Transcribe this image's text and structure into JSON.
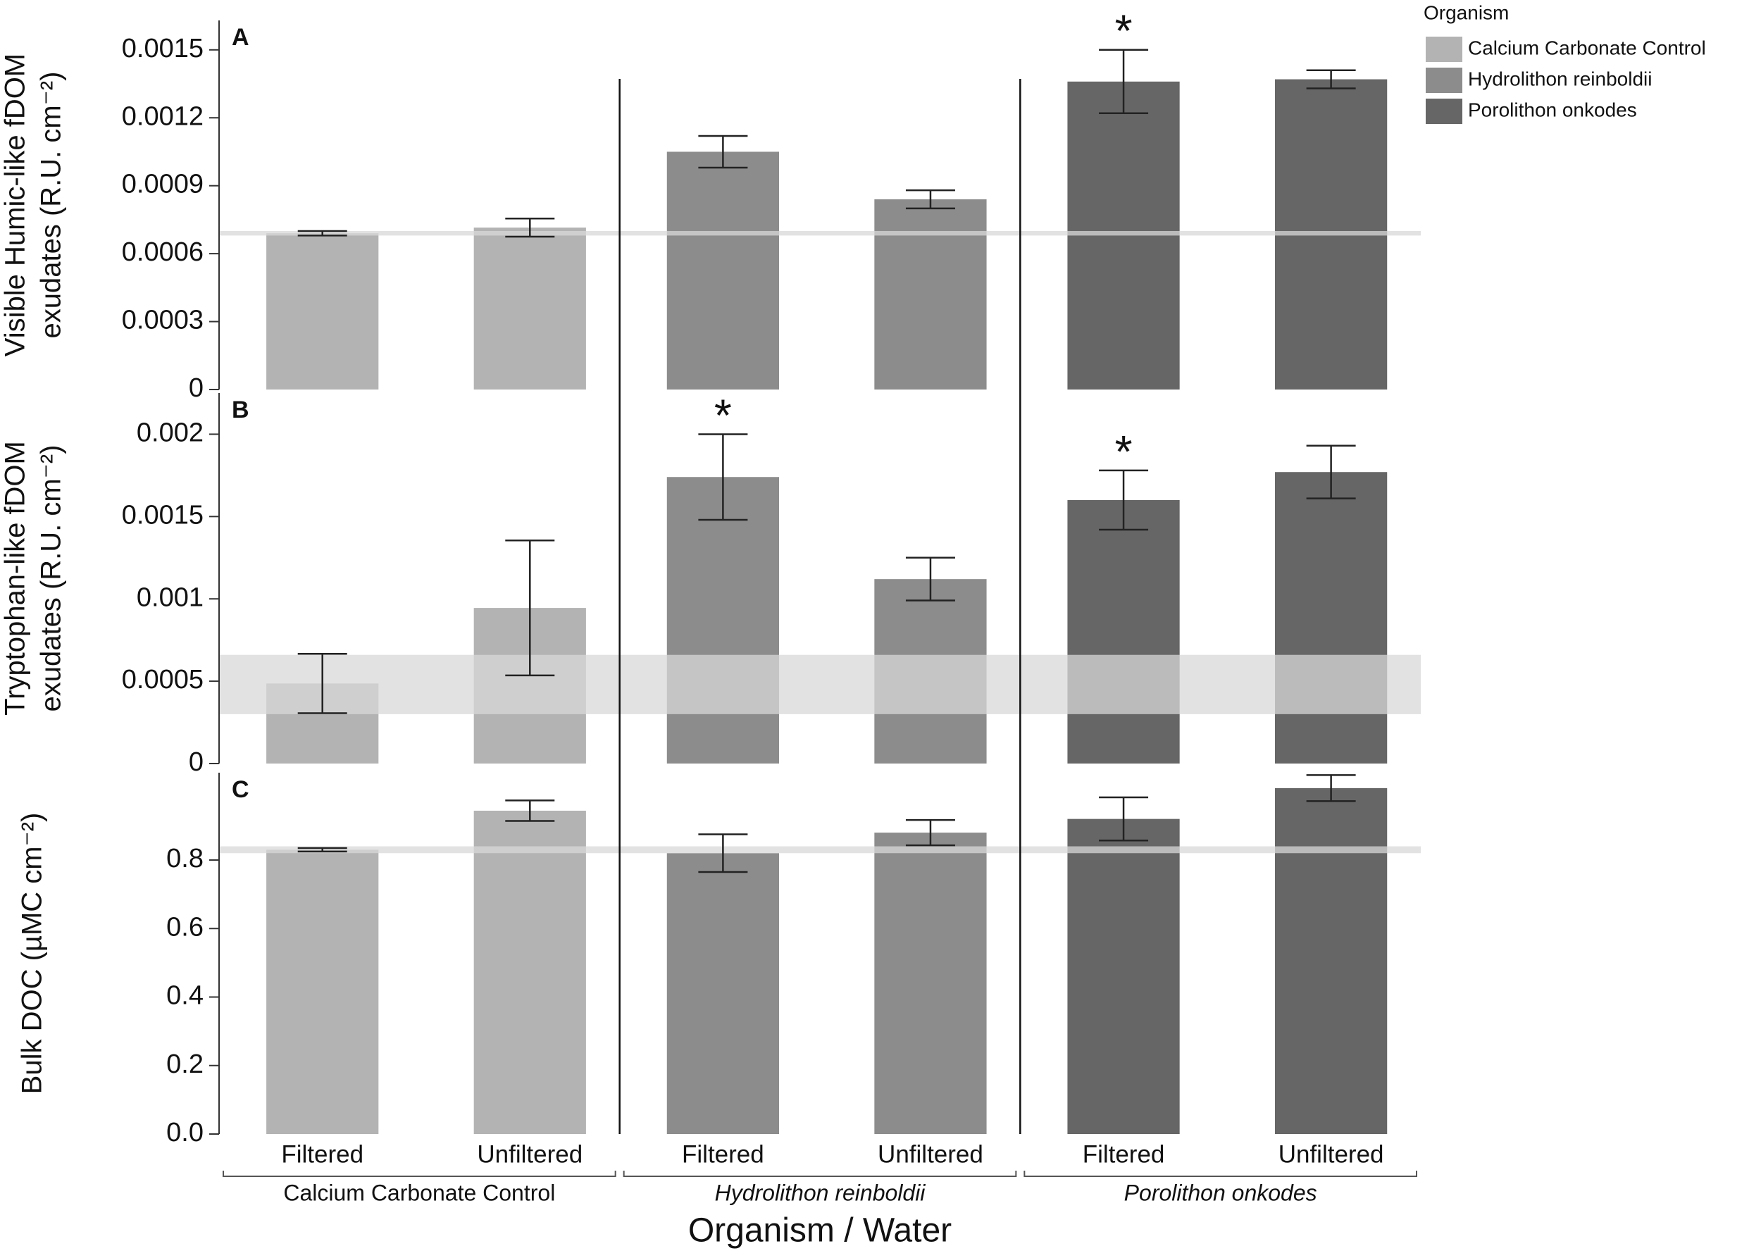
{
  "chart_data": [
    {
      "type": "bar",
      "panel_label": "A",
      "ylabel": [
        "Visible Humic-like fDOM",
        "exudates (R.U. cm⁻²)"
      ],
      "ylim": [
        0,
        0.00163
      ],
      "yticks": [
        0,
        0.0003,
        0.0006,
        0.0009,
        0.0012,
        0.0015
      ],
      "control_band": [
        0.00068,
        0.0007
      ],
      "legend_title": "Organism",
      "series": [
        {
          "name": "Calcium Carbonate Control",
          "color": "#b3b3b3",
          "values": [
            0.00069,
            0.000715
          ],
          "errors": [
            1e-05,
            4e-05
          ]
        },
        {
          "name": "Hydrolithon reinboldii",
          "color": "#8c8c8c",
          "values": [
            0.00105,
            0.00084
          ],
          "errors": [
            7e-05,
            4e-05
          ]
        },
        {
          "name": "Porolithon onkodes",
          "color": "#666666",
          "values": [
            0.00136,
            0.00137
          ],
          "errors": [
            0.00014,
            4e-05
          ]
        }
      ],
      "annotations": [
        {
          "text": "*",
          "series": 2,
          "category": 0
        }
      ]
    },
    {
      "type": "bar",
      "panel_label": "B",
      "ylabel": [
        "Tryptophan-like fDOM",
        "exudates (R.U. cm⁻²)"
      ],
      "ylim": [
        0,
        0.00225
      ],
      "yticks": [
        0,
        0.0005,
        0.001,
        0.0015,
        0.002
      ],
      "control_band": [
        0.0003,
        0.00066
      ],
      "series": [
        {
          "color": "#b3b3b3",
          "values": [
            0.000486,
            0.000945
          ],
          "errors": [
            0.00018,
            0.00041
          ]
        },
        {
          "color": "#8c8c8c",
          "values": [
            0.00174,
            0.00112
          ],
          "errors": [
            0.00026,
            0.00013
          ]
        },
        {
          "color": "#666666",
          "values": [
            0.0016,
            0.00177
          ],
          "errors": [
            0.00018,
            0.00016
          ]
        }
      ],
      "annotations": [
        {
          "text": "*",
          "series": 1,
          "category": 0
        },
        {
          "text": "*",
          "series": 2,
          "category": 0
        }
      ]
    },
    {
      "type": "bar",
      "panel_label": "C",
      "ylabel": [
        "Bulk DOC (µMC cm⁻²)"
      ],
      "ylim": [
        0,
        1.055
      ],
      "yticks": [
        {
          "value": 0,
          "label": "0.0"
        },
        0.2,
        0.4,
        0.6,
        0.8
      ],
      "control_band": [
        0.82,
        0.84
      ],
      "categories": [
        "Filtered",
        "Unfiltered"
      ],
      "xlabel": "Organism / Water",
      "series": [
        {
          "name": "Calcium Carbonate Control",
          "color": "#b3b3b3",
          "values": [
            0.83,
            0.944
          ],
          "errors": [
            0.005,
            0.03
          ]
        },
        {
          "name": "Hydrolithon reinboldii",
          "color": "#8c8c8c",
          "values": [
            0.82,
            0.88
          ],
          "errors": [
            0.055,
            0.037
          ]
        },
        {
          "name": "Porolithon onkodes",
          "color": "#666666",
          "values": [
            0.92,
            1.01
          ],
          "errors": [
            0.063,
            0.038
          ]
        }
      ]
    }
  ]
}
